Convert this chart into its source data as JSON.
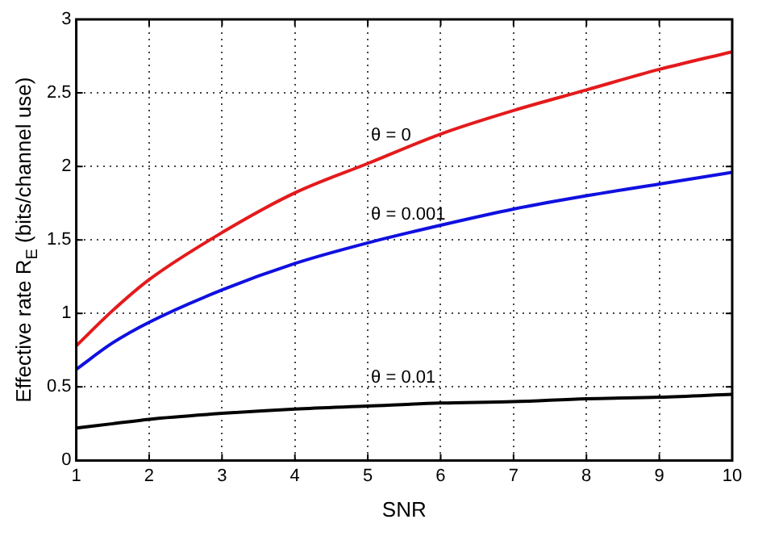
{
  "chart_data": {
    "type": "line",
    "xlabel": "SNR",
    "ylabel": "Effective rate R$_{E}$ (bits/channel use)",
    "x": [
      1,
      1.5,
      2,
      3,
      4,
      5,
      6,
      7,
      8,
      9,
      10
    ],
    "series": [
      {
        "name": "θ = 0",
        "color": "#e41a1c",
        "values": [
          0.78,
          1.02,
          1.23,
          1.55,
          1.82,
          2.02,
          2.22,
          2.38,
          2.52,
          2.66,
          2.78
        ]
      },
      {
        "name": "θ = 0.001",
        "color": "#1010e0",
        "values": [
          0.62,
          0.8,
          0.94,
          1.16,
          1.34,
          1.48,
          1.6,
          1.71,
          1.8,
          1.88,
          1.96
        ]
      },
      {
        "name": "θ = 0.01",
        "color": "#000000",
        "values": [
          0.22,
          0.25,
          0.28,
          0.32,
          0.35,
          0.37,
          0.39,
          0.4,
          0.42,
          0.43,
          0.45
        ]
      }
    ],
    "xlim": [
      1,
      10
    ],
    "xticks": [
      1,
      2,
      3,
      4,
      5,
      6,
      7,
      8,
      9,
      10
    ],
    "ylim": [
      0,
      3
    ],
    "yticks": [
      0,
      0.5,
      1,
      1.5,
      2,
      2.5,
      3
    ],
    "grid": true,
    "legend": false,
    "marker": "none",
    "line_style": "solid"
  }
}
